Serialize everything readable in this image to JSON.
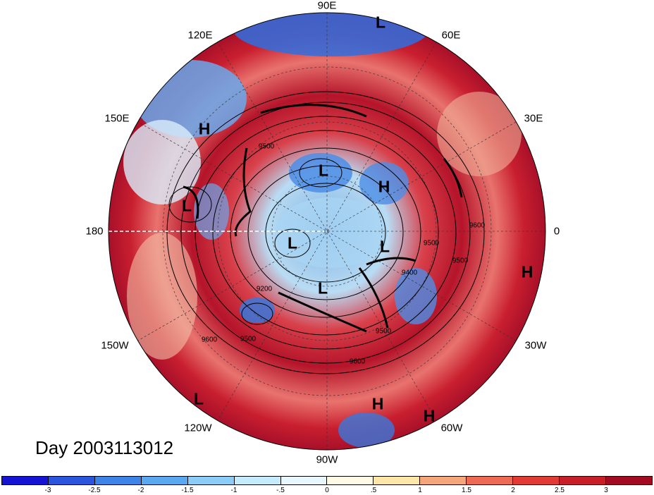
{
  "title": "",
  "day_label": "Day 2003113012",
  "longitude_labels": [
    "90E",
    "60E",
    "30E",
    "0",
    "30W",
    "60W",
    "90W",
    "120W",
    "150W",
    "180",
    "150E",
    "120E"
  ],
  "pressure_systems": [
    "L",
    "H",
    "L",
    "L",
    "H",
    "L",
    "L",
    "L",
    "H",
    "L",
    "H",
    "H"
  ],
  "contour_labels": [
    "9500",
    "9200",
    "9500",
    "9600",
    "9600",
    "9500",
    "9400",
    "9600",
    "9500",
    "9500"
  ],
  "colorbar": {
    "ticks": [
      "-3",
      "-2.5",
      "-2",
      "-1.5",
      "-1",
      "-.5",
      "0",
      ".5",
      "1",
      "1.5",
      "2",
      "2.5",
      "3"
    ],
    "colors": [
      "#1414d2",
      "#2b55dc",
      "#3e84e6",
      "#5aa8ef",
      "#8ccdf8",
      "#c4ecfc",
      "#e8f7fe",
      "#fefbe4",
      "#fde6a8",
      "#f5a77c",
      "#ed6a55",
      "#e23a35",
      "#c81e28",
      "#a30b22"
    ]
  }
}
